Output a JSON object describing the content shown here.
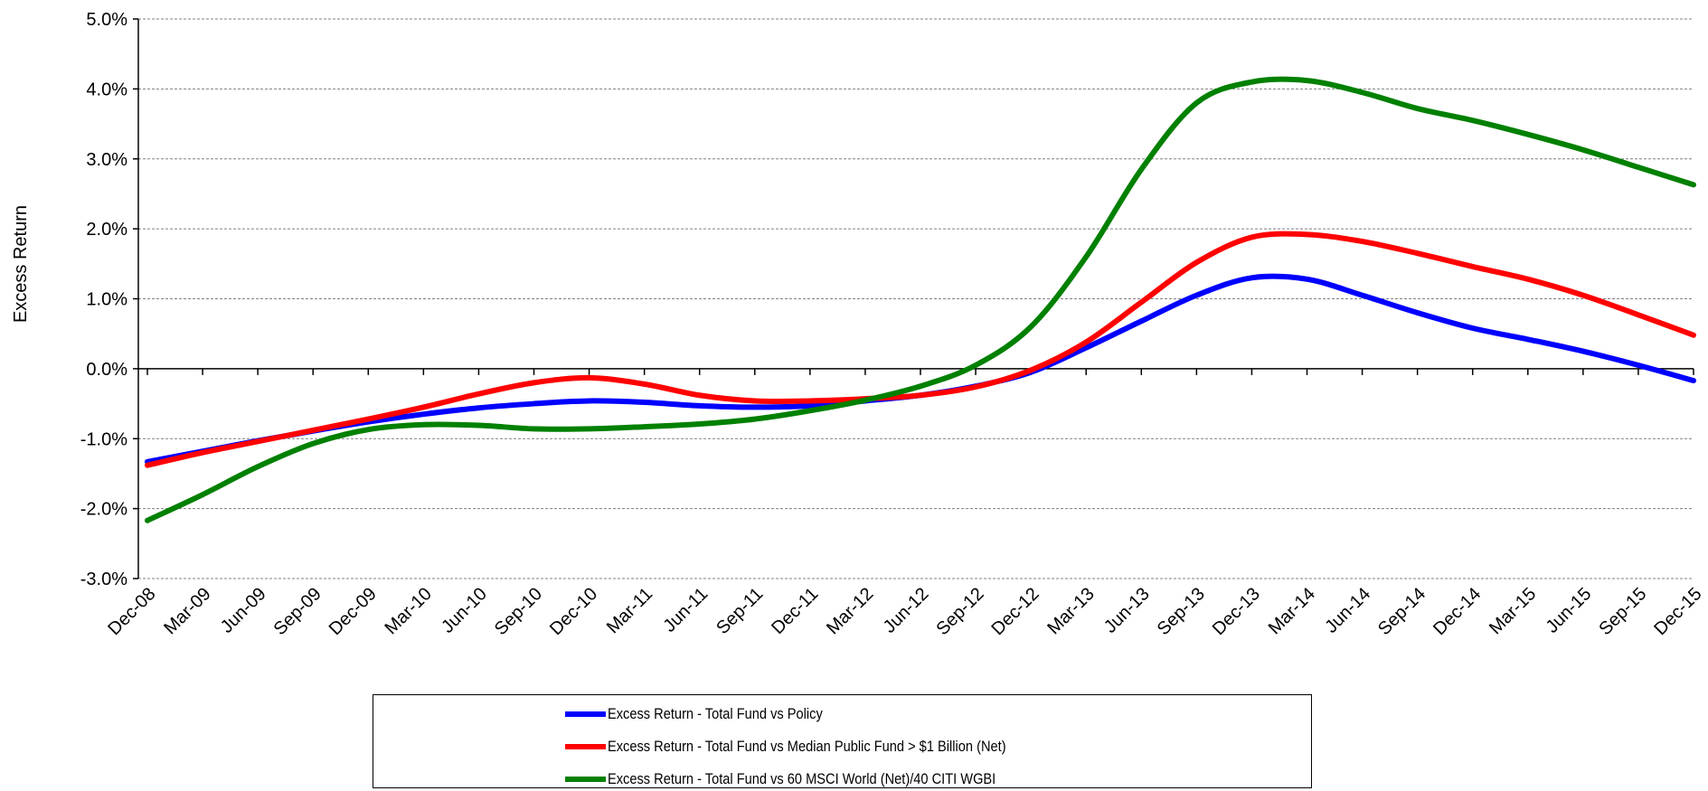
{
  "chart_data": {
    "type": "line",
    "ylabel": "Excess Return",
    "xlabel": "",
    "ylim": [
      -3.0,
      5.0
    ],
    "yticks": [
      "5.0%",
      "4.0%",
      "3.0%",
      "2.0%",
      "1.0%",
      "0.0%",
      "-1.0%",
      "-2.0%",
      "-3.0%"
    ],
    "grid": true,
    "legend_position": "bottom",
    "x": [
      "Dec-08",
      "Mar-09",
      "Jun-09",
      "Sep-09",
      "Dec-09",
      "Mar-10",
      "Jun-10",
      "Sep-10",
      "Dec-10",
      "Mar-11",
      "Jun-11",
      "Sep-11",
      "Dec-11",
      "Mar-12",
      "Jun-12",
      "Sep-12",
      "Dec-12",
      "Mar-13",
      "Jun-13",
      "Sep-13",
      "Dec-13",
      "Mar-14",
      "Jun-14",
      "Sep-14",
      "Dec-14",
      "Mar-15",
      "Jun-15",
      "Sep-15",
      "Dec-15"
    ],
    "series": [
      {
        "name": "Excess Return - Total Fund vs Policy",
        "color": "#0000ff",
        "values": [
          -1.33,
          -1.18,
          -1.03,
          -0.89,
          -0.76,
          -0.65,
          -0.56,
          -0.5,
          -0.46,
          -0.48,
          -0.53,
          -0.55,
          -0.53,
          -0.46,
          -0.38,
          -0.25,
          -0.05,
          0.3,
          0.68,
          1.05,
          1.3,
          1.28,
          1.05,
          0.8,
          0.58,
          0.42,
          0.25,
          0.05,
          -0.17
        ]
      },
      {
        "name": "Excess Return - Total Fund vs Median Public Fund > $1 Billion (Net)",
        "color": "#ff0000",
        "values": [
          -1.38,
          -1.2,
          -1.04,
          -0.88,
          -0.72,
          -0.55,
          -0.36,
          -0.2,
          -0.13,
          -0.22,
          -0.38,
          -0.46,
          -0.46,
          -0.43,
          -0.38,
          -0.26,
          -0.02,
          0.38,
          0.95,
          1.52,
          1.88,
          1.92,
          1.82,
          1.65,
          1.46,
          1.28,
          1.05,
          0.77,
          0.48
        ]
      },
      {
        "name": "Excess Return - Total Fund vs 60 MSCI World (Net)/40 CITI WGBI",
        "color": "#008000",
        "values": [
          -2.17,
          -1.8,
          -1.4,
          -1.07,
          -0.87,
          -0.8,
          -0.81,
          -0.86,
          -0.86,
          -0.83,
          -0.79,
          -0.72,
          -0.6,
          -0.45,
          -0.25,
          0.05,
          0.6,
          1.6,
          2.85,
          3.8,
          4.1,
          4.12,
          3.95,
          3.72,
          3.55,
          3.35,
          3.13,
          2.88,
          2.63
        ]
      }
    ]
  }
}
